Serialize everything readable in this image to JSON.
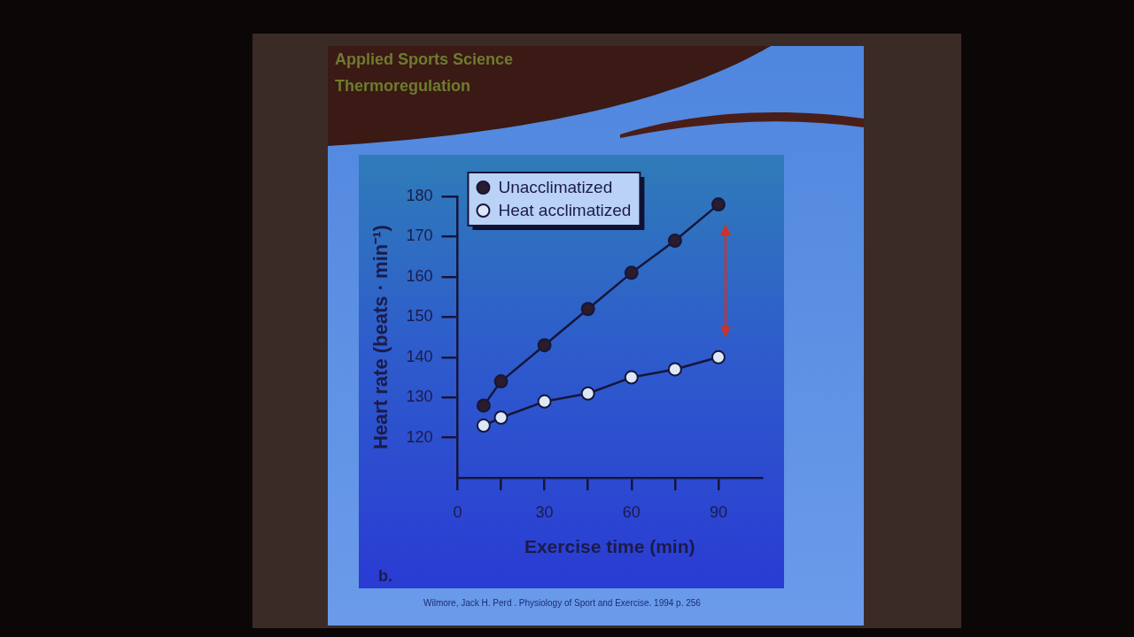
{
  "chart_data": {
    "type": "line",
    "title": "Applied Sports Science",
    "subtitle": "Thermoregulation",
    "xlabel": "Exercise time (min)",
    "ylabel": "Heart rate (beats · min⁻¹)",
    "annotations": [
      "b.",
      "Wilmore, Jack H. Perd . Physiology of Sport and Exercise. 1994 p. 256"
    ],
    "x": [
      9,
      15,
      30,
      45,
      60,
      75,
      90
    ],
    "series": [
      {
        "name": "Unacclimatized",
        "color": "#2a1c2c",
        "values": [
          128,
          134,
          143,
          152,
          161,
          169,
          178
        ]
      },
      {
        "name": "Heat acclimatized",
        "color": "#dce8f8",
        "values": [
          123,
          125,
          129,
          131,
          135,
          137,
          140
        ]
      }
    ],
    "xlim": [
      0,
      105
    ],
    "xticks": [
      0,
      {
        "value": 15,
        "label": null
      },
      30,
      {
        "value": 45,
        "label": null
      },
      60,
      {
        "value": 75,
        "label": null
      },
      90
    ],
    "ylim": [
      110,
      180
    ],
    "yticks": [
      120,
      130,
      140,
      150,
      160,
      170,
      180
    ],
    "legend": "top left",
    "marker": "circle",
    "line_style": "solid"
  }
}
